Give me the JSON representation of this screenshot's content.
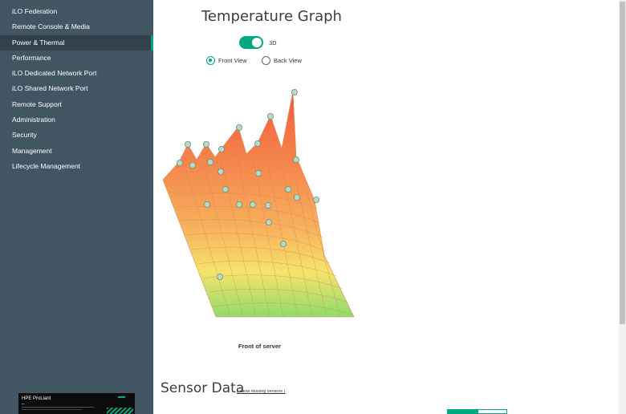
{
  "sidebar": {
    "items": [
      {
        "label": "iLO Federation",
        "active": false
      },
      {
        "label": "Remote Console & Media",
        "active": false
      },
      {
        "label": "Power & Thermal",
        "active": true
      },
      {
        "label": "Performance",
        "active": false
      },
      {
        "label": "iLO Dedicated Network Port",
        "active": false
      },
      {
        "label": "iLO Shared Network Port",
        "active": false
      },
      {
        "label": "Remote Support",
        "active": false
      },
      {
        "label": "Administration",
        "active": false
      },
      {
        "label": "Security",
        "active": false
      },
      {
        "label": "Management",
        "active": false
      },
      {
        "label": "Lifecycle Management",
        "active": false
      }
    ],
    "product": {
      "name": "HPE ProLiant"
    }
  },
  "main": {
    "title": "Temperature Graph",
    "toggle": {
      "label": "3D",
      "on": true
    },
    "views": [
      {
        "label": "Front View",
        "selected": true
      },
      {
        "label": "Back View",
        "selected": false
      }
    ],
    "graph_caption": "Front of server",
    "sensor_title": "Sensor Data",
    "show_missing_link": "( show missing sensors )"
  },
  "colors": {
    "sidebar_bg": "#425563",
    "sidebar_active_bg": "#33414d",
    "accent": "#01a982",
    "surface_hot": "#f26b45",
    "surface_warm": "#f6d35e",
    "surface_cool": "#8fdc6c"
  }
}
